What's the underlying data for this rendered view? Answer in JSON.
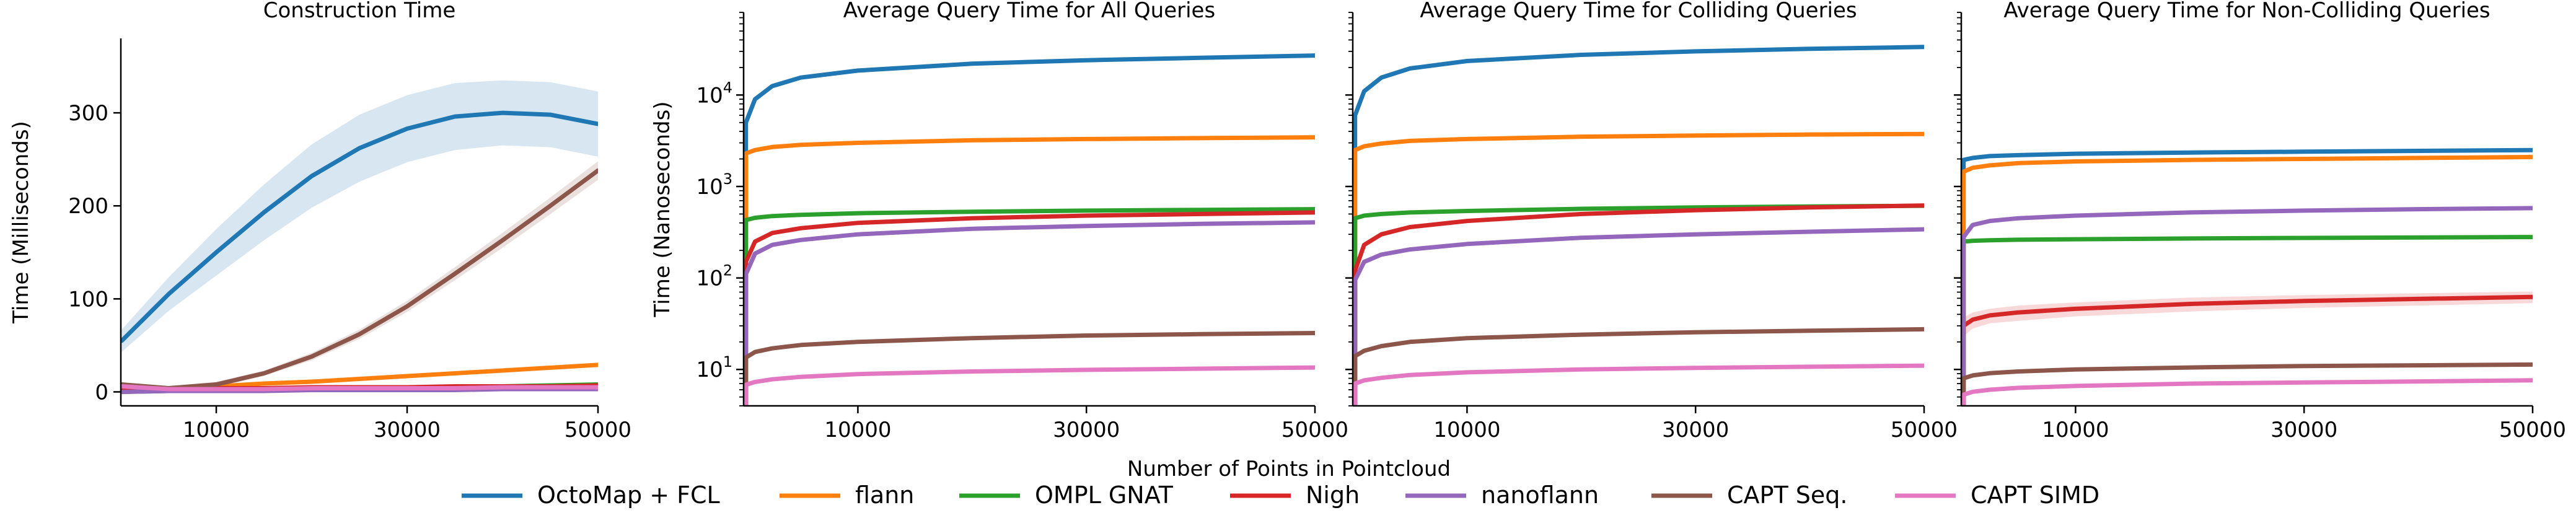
{
  "series_colors": {
    "octomap": "#1f77b4",
    "flann": "#ff7f0e",
    "gnat": "#2ca02c",
    "nigh": "#d62728",
    "nanoflann": "#9467bd",
    "capt_seq": "#8c564b",
    "capt_simd": "#e377c2"
  },
  "shared_xlabel": "Number of Points in Pointcloud",
  "legend": {
    "placement": "bottom-center",
    "items": [
      {
        "key": "octomap",
        "label": "OctoMap + FCL"
      },
      {
        "key": "flann",
        "label": "flann"
      },
      {
        "key": "gnat",
        "label": "OMPL GNAT"
      },
      {
        "key": "nigh",
        "label": "Nigh"
      },
      {
        "key": "nanoflann",
        "label": "nanoflann"
      },
      {
        "key": "capt_seq",
        "label": "CAPT Seq."
      },
      {
        "key": "capt_simd",
        "label": "CAPT SIMD"
      }
    ]
  },
  "chart_data": [
    {
      "id": "construction",
      "type": "line",
      "title": "Construction Time",
      "ylabel": "Time (Milliseconds)",
      "xlabel": "",
      "yscale": "linear",
      "xlim": [
        0,
        50000
      ],
      "ylim": [
        -15,
        380
      ],
      "xticks": [
        10000,
        30000,
        50000
      ],
      "xtick_labels": [
        "10000",
        "30000",
        "50000"
      ],
      "yticks": [
        0,
        100,
        200,
        300
      ],
      "ytick_labels": [
        "0",
        "100",
        "200",
        "300"
      ],
      "x": [
        100,
        5000,
        10000,
        15000,
        20000,
        25000,
        30000,
        35000,
        40000,
        45000,
        50000
      ],
      "series": [
        {
          "key": "octomap",
          "values": [
            55,
            105,
            150,
            193,
            232,
            262,
            283,
            296,
            300,
            298,
            288
          ],
          "band": [
            12,
            18,
            25,
            30,
            34,
            36,
            36,
            36,
            35,
            35,
            35
          ]
        },
        {
          "key": "flann",
          "values": [
            1,
            3,
            6,
            9,
            11,
            14,
            17,
            20,
            23,
            26,
            29
          ],
          "band": [
            1,
            1,
            1,
            1,
            1,
            1,
            1,
            1,
            1,
            1,
            1
          ]
        },
        {
          "key": "gnat",
          "values": [
            0,
            1,
            2,
            2,
            3,
            4,
            4,
            5,
            6,
            7,
            8
          ],
          "band": [
            1,
            1,
            1,
            1,
            1,
            1,
            1,
            1,
            1,
            1,
            1
          ]
        },
        {
          "key": "nigh",
          "values": [
            3,
            3,
            4,
            4,
            5,
            5,
            5,
            6,
            6,
            6,
            7
          ],
          "band": [
            1,
            1,
            1,
            1,
            1,
            1,
            1,
            1,
            1,
            1,
            1
          ]
        },
        {
          "key": "nanoflann",
          "values": [
            0,
            1,
            1,
            1,
            2,
            2,
            2,
            2,
            3,
            3,
            3
          ],
          "band": [
            1,
            1,
            1,
            1,
            1,
            1,
            1,
            1,
            1,
            1,
            1
          ]
        },
        {
          "key": "capt_seq",
          "values": [
            8,
            4,
            8,
            20,
            38,
            62,
            92,
            127,
            163,
            200,
            238
          ],
          "band": [
            2,
            2,
            3,
            3,
            4,
            5,
            6,
            7,
            8,
            9,
            10
          ]
        },
        {
          "key": "capt_simd",
          "values": [
            6,
            3,
            3,
            3,
            4,
            4,
            4,
            4,
            5,
            5,
            5
          ],
          "band": [
            1,
            1,
            1,
            1,
            1,
            1,
            1,
            1,
            1,
            1,
            1
          ]
        }
      ]
    },
    {
      "id": "all_queries",
      "type": "line",
      "title": "Average Query Time for All Queries",
      "ylabel": "Time (Nanoseconds)",
      "xlabel": "",
      "yscale": "log",
      "xlim": [
        0,
        50000
      ],
      "ylim": [
        4,
        80000
      ],
      "xticks": [
        10000,
        30000,
        50000
      ],
      "xtick_labels": [
        "10000",
        "30000",
        "50000"
      ],
      "yticks": [
        10,
        100,
        1000,
        10000
      ],
      "x": [
        200,
        1000,
        2500,
        5000,
        10000,
        20000,
        30000,
        40000,
        50000
      ],
      "series": [
        {
          "key": "octomap",
          "values": [
            5000,
            9000,
            12500,
            15500,
            18500,
            22000,
            24000,
            25500,
            27000
          ]
        },
        {
          "key": "flann",
          "values": [
            2300,
            2500,
            2700,
            2850,
            3000,
            3200,
            3300,
            3380,
            3450
          ]
        },
        {
          "key": "gnat",
          "values": [
            430,
            455,
            475,
            490,
            510,
            530,
            545,
            555,
            565
          ]
        },
        {
          "key": "nigh",
          "values": [
            150,
            250,
            310,
            350,
            400,
            450,
            480,
            500,
            520
          ]
        },
        {
          "key": "nanoflann",
          "values": [
            110,
            185,
            230,
            260,
            300,
            345,
            370,
            390,
            405
          ]
        },
        {
          "key": "capt_seq",
          "values": [
            13.5,
            15.5,
            17,
            18.5,
            20,
            22,
            23.5,
            24.3,
            25
          ]
        },
        {
          "key": "capt_simd",
          "values": [
            6.8,
            7.3,
            7.8,
            8.3,
            8.9,
            9.5,
            9.9,
            10.2,
            10.5
          ]
        }
      ]
    },
    {
      "id": "colliding",
      "type": "line",
      "title": "Average Query Time for Colliding Queries",
      "ylabel": "",
      "xlabel": "",
      "yscale": "log",
      "xlim": [
        0,
        50000
      ],
      "ylim": [
        4,
        80000
      ],
      "xticks": [
        10000,
        30000,
        50000
      ],
      "xtick_labels": [
        "10000",
        "30000",
        "50000"
      ],
      "yticks": [
        10,
        100,
        1000,
        10000
      ],
      "x": [
        200,
        1000,
        2500,
        5000,
        10000,
        20000,
        30000,
        40000,
        50000
      ],
      "series": [
        {
          "key": "octomap",
          "values": [
            6000,
            11000,
            15500,
            19500,
            23500,
            27500,
            30000,
            32000,
            33500
          ]
        },
        {
          "key": "flann",
          "values": [
            2500,
            2750,
            2950,
            3150,
            3300,
            3500,
            3600,
            3700,
            3750
          ]
        },
        {
          "key": "gnat",
          "values": [
            450,
            480,
            500,
            520,
            540,
            570,
            590,
            605,
            615
          ]
        },
        {
          "key": "nigh",
          "values": [
            120,
            230,
            300,
            360,
            420,
            500,
            550,
            590,
            620
          ]
        },
        {
          "key": "nanoflann",
          "values": [
            95,
            150,
            180,
            205,
            235,
            275,
            300,
            320,
            340
          ]
        },
        {
          "key": "capt_seq",
          "values": [
            14,
            16,
            18,
            20,
            22,
            24,
            25.5,
            26.5,
            27.5
          ]
        },
        {
          "key": "capt_simd",
          "values": [
            7,
            7.6,
            8.1,
            8.7,
            9.3,
            10,
            10.4,
            10.7,
            11
          ]
        }
      ]
    },
    {
      "id": "non_colliding",
      "type": "line",
      "title": "Average Query Time for Non-Colliding Queries",
      "ylabel": "",
      "xlabel": "",
      "yscale": "log",
      "xlim": [
        0,
        50000
      ],
      "ylim": [
        4,
        80000
      ],
      "xticks": [
        10000,
        30000,
        50000
      ],
      "xtick_labels": [
        "10000",
        "30000",
        "50000"
      ],
      "yticks": [
        10,
        100,
        1000,
        10000
      ],
      "x": [
        200,
        1000,
        2500,
        5000,
        10000,
        20000,
        30000,
        40000,
        50000
      ],
      "series": [
        {
          "key": "octomap",
          "values": [
            1950,
            2050,
            2150,
            2200,
            2280,
            2350,
            2400,
            2450,
            2500
          ]
        },
        {
          "key": "flann",
          "values": [
            1450,
            1600,
            1700,
            1800,
            1880,
            1950,
            2000,
            2050,
            2100
          ]
        },
        {
          "key": "gnat",
          "values": [
            250,
            255,
            258,
            262,
            265,
            270,
            274,
            277,
            280
          ]
        },
        {
          "key": "nigh",
          "values": [
            30,
            35,
            39,
            42,
            46,
            52,
            56,
            59,
            62
          ],
          "band": [
            7,
            7,
            7,
            8,
            8,
            9,
            9,
            9,
            9
          ]
        },
        {
          "key": "nanoflann",
          "values": [
            280,
            380,
            420,
            450,
            480,
            520,
            545,
            565,
            580
          ]
        },
        {
          "key": "capt_seq",
          "values": [
            8,
            8.6,
            9.1,
            9.5,
            10,
            10.5,
            10.9,
            11.1,
            11.3
          ]
        },
        {
          "key": "capt_simd",
          "values": [
            5.3,
            5.7,
            6,
            6.3,
            6.6,
            7,
            7.2,
            7.4,
            7.6
          ]
        }
      ]
    }
  ]
}
